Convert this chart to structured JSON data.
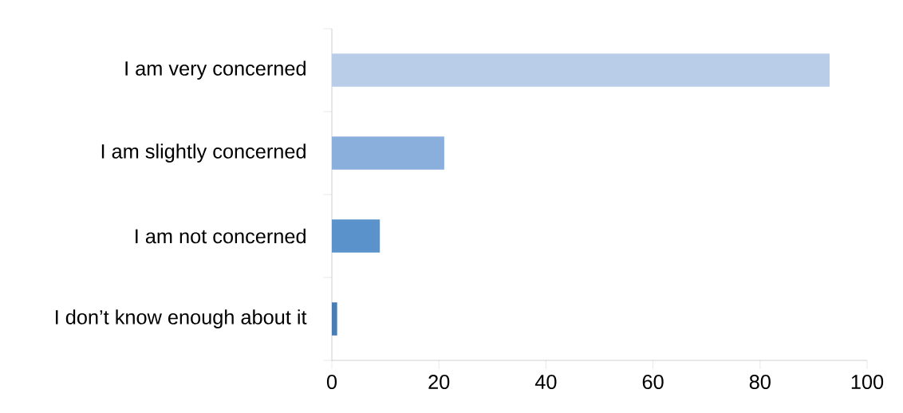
{
  "chart_data": {
    "type": "bar",
    "orientation": "horizontal",
    "categories": [
      "I am very concerned",
      "I am slightly concerned",
      "I am not concerned",
      "I don’t know enough about it"
    ],
    "values": [
      93,
      21,
      9,
      1
    ],
    "colors": [
      "#b9cde8",
      "#8aafdc",
      "#5a93cb",
      "#4a7db3"
    ],
    "xlim": [
      0,
      100
    ],
    "xticks": [
      0,
      20,
      40,
      60,
      80,
      100
    ],
    "grid": false
  }
}
